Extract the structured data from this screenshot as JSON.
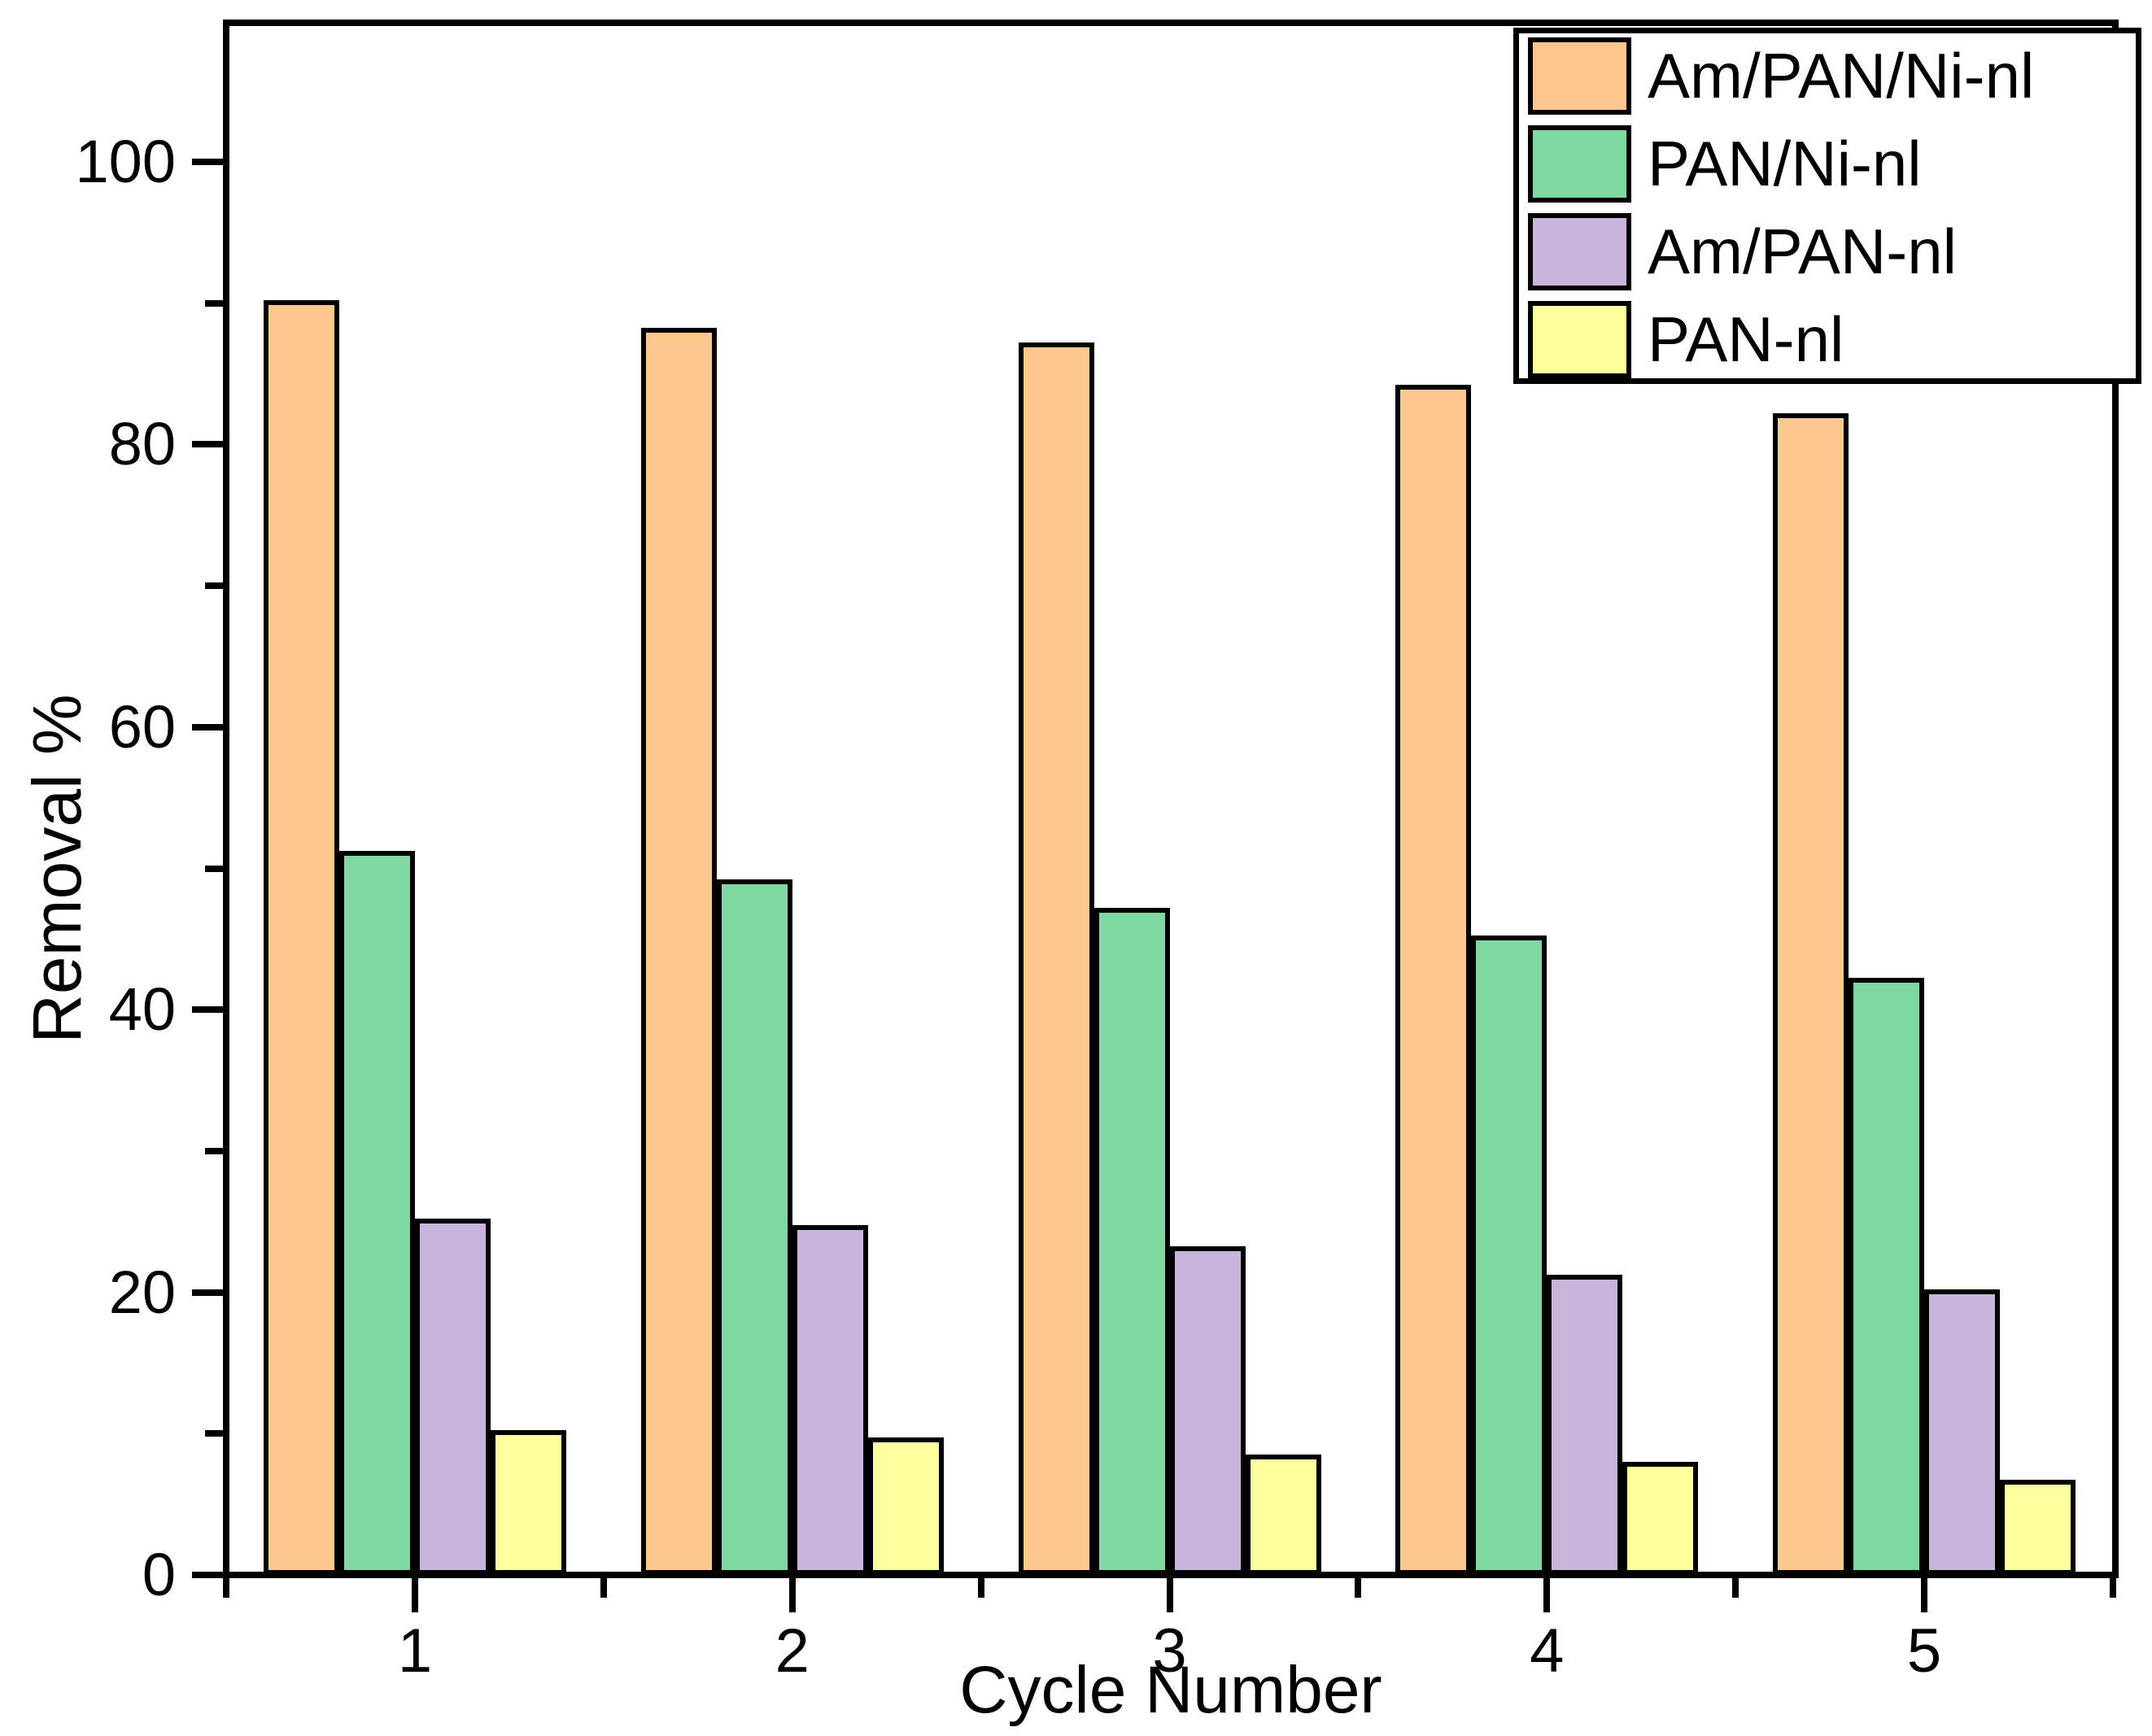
{
  "chart_data": {
    "type": "bar",
    "title": "",
    "xlabel": "Cycle Number",
    "ylabel": "Removal %",
    "categories": [
      "1",
      "2",
      "3",
      "4",
      "5"
    ],
    "series": [
      {
        "name": "Am/PAN/Ni-nl",
        "color": "#FDC88F",
        "values": [
          90,
          88,
          87,
          84,
          82
        ]
      },
      {
        "name": "PAN/Ni-nl",
        "color": "#7ED8A0",
        "values": [
          51,
          49,
          47,
          45,
          42
        ]
      },
      {
        "name": "Am/PAN-nl",
        "color": "#C9B4DB",
        "values": [
          25,
          24.5,
          23,
          21,
          20
        ]
      },
      {
        "name": "PAN-nl",
        "color": "#FFFF9E",
        "values": [
          10,
          9.5,
          8.3,
          7.8,
          6.5
        ]
      }
    ],
    "ylim": [
      0,
      110
    ],
    "y_major_ticks": [
      0,
      20,
      40,
      60,
      80,
      100
    ],
    "y_minor_step": 10,
    "x_minor_positions": [
      0.5,
      1.5,
      2.5,
      3.5,
      4.5,
      5.5
    ],
    "grid": false,
    "legend_position": "top-right",
    "bar_border_color": "#000000",
    "axis_color": "#000000",
    "background_color": "#FFFFFF"
  }
}
